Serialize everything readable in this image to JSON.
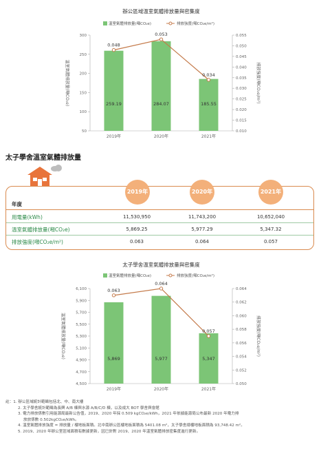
{
  "chart_data": [
    {
      "type": "bar",
      "title": "辦公區域溫室氣體排放量與密集度",
      "categories": [
        "2019年",
        "2020年",
        "2021年"
      ],
      "series": [
        {
          "name": "溫室氣體排放量(噸CO₂e)",
          "kind": "bar",
          "values": [
            259.19,
            284.07,
            185.55
          ],
          "labels": [
            "259.19",
            "284.07",
            "185.55"
          ]
        },
        {
          "name": "排放強度(噸CO₂e/m²)",
          "kind": "line",
          "values": [
            0.048,
            0.053,
            0.034
          ],
          "labels": [
            "0.048",
            "0.053",
            "0.034"
          ]
        }
      ],
      "ylabel": "溫室氣體排放量(噸CO₂e)",
      "y2label": "排放強度(噸CO₂e/m²)",
      "ylim": [
        50,
        300
      ],
      "yticks": [
        "50",
        "100",
        "150",
        "200",
        "250",
        "300"
      ],
      "y2lim": [
        0.01,
        0.055
      ],
      "y2ticks": [
        "0.010",
        "0.015",
        "0.020",
        "0.025",
        "0.030",
        "0.035",
        "0.040",
        "0.045",
        "0.050",
        "0.055"
      ],
      "colors": {
        "bar": "#7cc576",
        "line": "#c47a4a",
        "barlabel": "#333333"
      },
      "legend": "top-center",
      "grid": false
    },
    {
      "type": "bar",
      "title": "太子學舍溫室氣體排放量與密集度",
      "categories": [
        "2019年",
        "2020年",
        "2021年"
      ],
      "series": [
        {
          "name": "溫室氣體排放量(噸CO₂e)",
          "kind": "bar",
          "values": [
            5869,
            5977,
            5347
          ],
          "labels": [
            "5,869",
            "5,977",
            "5,347"
          ]
        },
        {
          "name": "排放強度(噸CO₂e/m²)",
          "kind": "line",
          "values": [
            0.063,
            0.064,
            0.057
          ],
          "labels": [
            "0.063",
            "0.064",
            "0.057"
          ]
        }
      ],
      "ylabel": "溫室氣體排放量(噸CO₂e)",
      "y2label": "排放強度(噸CO₂e/m²)",
      "ylim": [
        4500,
        6100
      ],
      "yticks": [
        "4,500",
        "4,700",
        "4,900",
        "5,100",
        "5,300",
        "5,500",
        "5,700",
        "5,900",
        "6,100"
      ],
      "y2lim": [
        0.05,
        0.064
      ],
      "y2ticks": [
        "0.050",
        "0.052",
        "0.054",
        "0.056",
        "0.058",
        "0.060",
        "0.062",
        "0.064"
      ],
      "colors": {
        "bar": "#7cc576",
        "line": "#c47a4a",
        "barlabel": "#333333"
      },
      "legend": "top-center",
      "grid": false
    }
  ],
  "section_title": "太子學舍溫室氣體排放量",
  "table": {
    "header_label": "年度",
    "years": [
      "2019年",
      "2020年",
      "2021年"
    ],
    "rows": [
      {
        "label": "用電量(kWh)",
        "values": [
          "11,530,950",
          "11,743,200",
          "10,652,040"
        ]
      },
      {
        "label": "溫室氣體排放量(噸CO₂e)",
        "values": [
          "5,869.25",
          "5,977.29",
          "5,347.32"
        ]
      },
      {
        "label": "排放強度(噸CO₂e/m²)",
        "values": [
          "0.063",
          "0.064",
          "0.057"
        ]
      }
    ]
  },
  "notes": [
    "註：1. 辦公區域統計範疇包括北、中、南大樓",
    "2. 太子學舍統計範疇為長興 A/B 棟與水源 A/B/C/D 棟，以及成大 BOT 學舍與會館",
    "3. 電力排放係數引用能源局最新公告值，2019、2020 年採 0.509 kgCO₂e/kWh，2021 年依據能源局公布最新 2020 年電力排",
    "放放係數 0.502kgCO₂e/kWh。",
    "4. 溫室氣體排放強度 = 排放量 / 樓地板面積。北中南辦公區樓地板面積為 5401.08 m²，太子學舍總樓地板面積為 93,748.42 m²。",
    "5. 2019、2020 年辦公室區域面積有數據更新，因已針對 2019、2020 年溫室氣體排放密集度進行更新。"
  ],
  "icons": {
    "house": "house-icon",
    "cloud": "cloud-icon"
  }
}
